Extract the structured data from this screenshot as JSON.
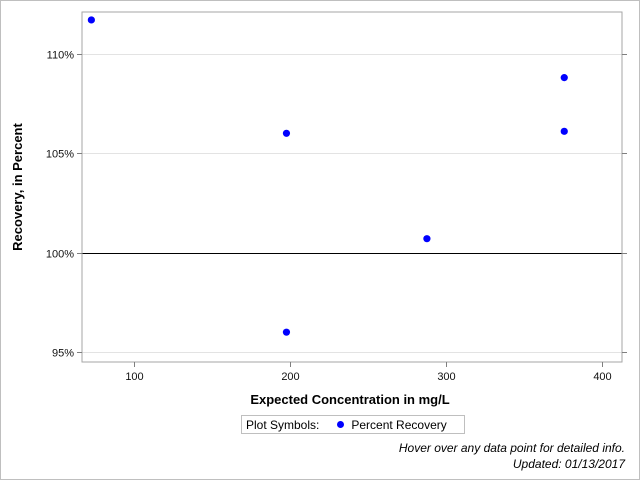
{
  "chart_data": {
    "type": "scatter",
    "xlabel": "Expected Concentration in mg/L",
    "ylabel": "Recovery, in Percent",
    "xlim": [
      67,
      413
    ],
    "ylim": [
      94.5,
      112.1
    ],
    "x_ticks": [
      100,
      200,
      300,
      400
    ],
    "y_ticks": [
      95,
      100,
      105,
      110
    ],
    "y_tick_labels": [
      "95%",
      "100%",
      "105%",
      "110%"
    ],
    "reference_line_y": 100,
    "grid": "horizontal",
    "legend_position": "bottom",
    "series": [
      {
        "name": "Percent Recovery",
        "color": "#0000ff",
        "points": [
          {
            "x": 73,
            "y": 111.7
          },
          {
            "x": 198,
            "y": 106.0
          },
          {
            "x": 198,
            "y": 96.0
          },
          {
            "x": 288,
            "y": 100.7
          },
          {
            "x": 376,
            "y": 108.8
          },
          {
            "x": 376,
            "y": 106.1
          }
        ]
      }
    ]
  },
  "legend": {
    "title": "Plot Symbols:",
    "entry": "Percent Recovery",
    "marker_color": "#0000ff"
  },
  "footnotes": {
    "hover_note": "Hover over any data point for detailed info.",
    "updated": "Updated: 01/13/2017"
  }
}
